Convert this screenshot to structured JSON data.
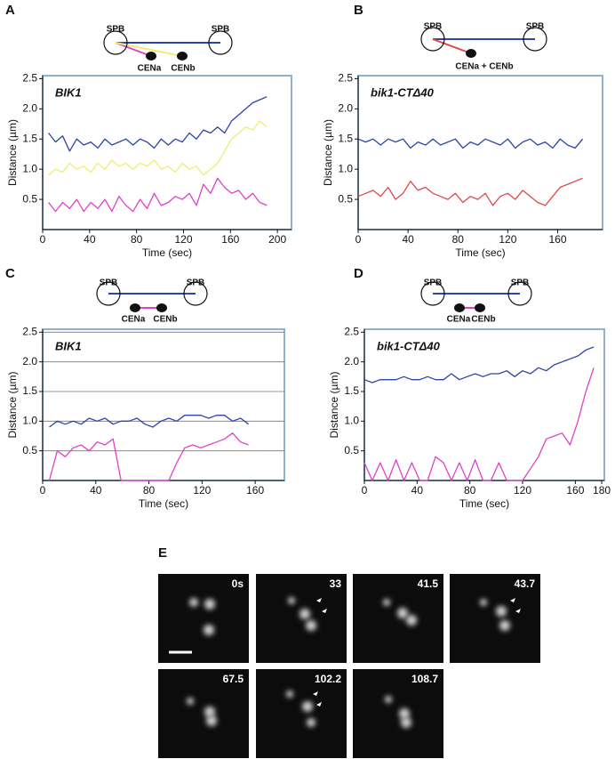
{
  "chart_data": [
    {
      "panel": "A",
      "type": "line",
      "title": "BIK1",
      "diagram_labels": [
        "SPB",
        "SPB",
        "CENa",
        "CENb"
      ],
      "xlabel": "Time (sec)",
      "ylabel": "Distance (µm)",
      "grid": false,
      "xlim": [
        0,
        212
      ],
      "ylim": [
        0,
        2.55
      ],
      "xticks": [
        0,
        40,
        80,
        120,
        160,
        200
      ],
      "yticks": [
        0.5,
        {
          "value": 1,
          "label": "1.0"
        },
        1.5,
        {
          "value": 2,
          "label": "2.0"
        },
        2.5
      ],
      "x": [
        5,
        11,
        17,
        23,
        29,
        35,
        41,
        47,
        53,
        59,
        65,
        71,
        77,
        83,
        89,
        95,
        101,
        107,
        113,
        119,
        125,
        131,
        137,
        143,
        149,
        155,
        161,
        167,
        173,
        179,
        185,
        191
      ],
      "series": [
        {
          "color": "#2b45a8",
          "values": [
            1.6,
            1.45,
            1.55,
            1.3,
            1.5,
            1.4,
            1.45,
            1.35,
            1.5,
            1.4,
            1.45,
            1.5,
            1.4,
            1.5,
            1.45,
            1.35,
            1.5,
            1.4,
            1.5,
            1.45,
            1.6,
            1.5,
            1.65,
            1.6,
            1.7,
            1.6,
            1.8,
            1.9,
            2.0,
            2.1,
            2.15,
            2.2
          ]
        },
        {
          "color": "#eeee70",
          "values": [
            0.9,
            1.0,
            0.95,
            1.1,
            1.0,
            1.05,
            0.95,
            1.1,
            1.0,
            1.15,
            1.05,
            1.1,
            1.0,
            1.1,
            1.05,
            1.15,
            1.0,
            1.05,
            0.95,
            1.1,
            1.0,
            1.05,
            0.9,
            1.0,
            1.1,
            1.3,
            1.5,
            1.6,
            1.7,
            1.65,
            1.8,
            1.7
          ]
        },
        {
          "color": "#e040c8",
          "values": [
            0.45,
            0.3,
            0.45,
            0.35,
            0.5,
            0.3,
            0.45,
            0.35,
            0.5,
            0.3,
            0.55,
            0.4,
            0.3,
            0.5,
            0.35,
            0.6,
            0.4,
            0.45,
            0.55,
            0.5,
            0.6,
            0.4,
            0.75,
            0.6,
            0.85,
            0.7,
            0.6,
            0.65,
            0.5,
            0.6,
            0.45,
            0.4
          ]
        }
      ]
    },
    {
      "panel": "B",
      "type": "line",
      "title": "bik1-CTΔ40",
      "diagram_labels": [
        "SPB",
        "SPB",
        "CENa + CENb"
      ],
      "xlabel": "Time (sec)",
      "ylabel": "Distance (µm)",
      "grid": false,
      "xlim": [
        0,
        196
      ],
      "ylim": [
        0,
        2.55
      ],
      "xticks": [
        0,
        40,
        80,
        120,
        160
      ],
      "yticks": [
        0.5,
        {
          "value": 1,
          "label": "1.0"
        },
        1.5,
        {
          "value": 2,
          "label": "2.0"
        },
        2.5
      ],
      "x": [
        0,
        6,
        12,
        18,
        24,
        30,
        36,
        42,
        48,
        54,
        60,
        66,
        72,
        78,
        84,
        90,
        96,
        102,
        108,
        114,
        120,
        126,
        132,
        138,
        144,
        150,
        156,
        162,
        168,
        174,
        180
      ],
      "series": [
        {
          "color": "#2b45a8",
          "values": [
            1.5,
            1.45,
            1.5,
            1.4,
            1.5,
            1.45,
            1.5,
            1.35,
            1.45,
            1.4,
            1.5,
            1.4,
            1.45,
            1.5,
            1.35,
            1.45,
            1.4,
            1.5,
            1.45,
            1.4,
            1.5,
            1.35,
            1.45,
            1.5,
            1.4,
            1.45,
            1.35,
            1.5,
            1.4,
            1.35,
            1.5
          ]
        },
        {
          "color": "#e04848",
          "values": [
            0.55,
            0.6,
            0.65,
            0.55,
            0.7,
            0.5,
            0.6,
            0.8,
            0.65,
            0.7,
            0.6,
            0.55,
            0.5,
            0.6,
            0.45,
            0.55,
            0.5,
            0.6,
            0.4,
            0.55,
            0.6,
            0.5,
            0.65,
            0.55,
            0.45,
            0.4,
            0.55,
            0.7,
            0.75,
            0.8,
            0.85
          ]
        }
      ]
    },
    {
      "panel": "C",
      "type": "line",
      "title": "BIK1",
      "diagram_labels": [
        "SPB",
        "SPB",
        "CENa",
        "CENb"
      ],
      "xlabel": "Time (sec)",
      "ylabel": "Distance (µm)",
      "grid": true,
      "xlim": [
        0,
        182
      ],
      "ylim": [
        0,
        2.55
      ],
      "xticks": [
        0,
        40,
        80,
        120,
        160
      ],
      "yticks": [
        0.5,
        {
          "value": 1,
          "label": "1.0"
        },
        1.5,
        {
          "value": 2,
          "label": "2.0"
        },
        2.5
      ],
      "x": [
        5,
        11,
        17,
        23,
        29,
        35,
        41,
        47,
        53,
        59,
        65,
        71,
        77,
        83,
        89,
        95,
        101,
        107,
        113,
        119,
        125,
        131,
        137,
        143,
        149,
        155
      ],
      "series": [
        {
          "color": "#2b45a8",
          "values": [
            0.9,
            1.0,
            0.95,
            1.0,
            0.95,
            1.05,
            1.0,
            1.05,
            0.95,
            1.0,
            1.0,
            1.05,
            0.95,
            0.9,
            1.0,
            1.05,
            1.0,
            1.1,
            1.1,
            1.1,
            1.05,
            1.1,
            1.1,
            1.0,
            1.05,
            0.95
          ]
        },
        {
          "color": "#e040c8",
          "values": [
            0,
            0.5,
            0.4,
            0.55,
            0.6,
            0.5,
            0.65,
            0.6,
            0.7,
            0,
            0,
            0,
            0,
            0,
            0,
            0,
            0.3,
            0.55,
            0.6,
            0.55,
            0.6,
            0.65,
            0.7,
            0.8,
            0.65,
            0.6
          ]
        }
      ]
    },
    {
      "panel": "D",
      "type": "line",
      "title": "bik1-CTΔ40",
      "diagram_labels": [
        "SPB",
        "SPB",
        "CENa",
        "CENb"
      ],
      "xlabel": "Time (sec)",
      "ylabel": "Distance (µm)",
      "grid": false,
      "xlim": [
        0,
        182
      ],
      "ylim": [
        0,
        2.55
      ],
      "xticks": [
        0,
        40,
        80,
        120,
        160,
        180
      ],
      "yticks": [
        0.5,
        {
          "value": 1,
          "label": "1.0"
        },
        1.5,
        {
          "value": 2,
          "label": "2.0"
        },
        2.5
      ],
      "x": [
        0,
        6,
        12,
        18,
        24,
        30,
        36,
        42,
        48,
        54,
        60,
        66,
        72,
        78,
        84,
        90,
        96,
        102,
        108,
        114,
        120,
        126,
        132,
        138,
        144,
        150,
        156,
        162,
        168,
        174
      ],
      "series": [
        {
          "color": "#2b45a8",
          "values": [
            1.7,
            1.65,
            1.7,
            1.7,
            1.7,
            1.75,
            1.7,
            1.7,
            1.75,
            1.7,
            1.7,
            1.8,
            1.7,
            1.75,
            1.8,
            1.75,
            1.8,
            1.8,
            1.85,
            1.75,
            1.85,
            1.8,
            1.9,
            1.85,
            1.95,
            2.0,
            2.05,
            2.1,
            2.2,
            2.25
          ]
        },
        {
          "color": "#e040c8",
          "values": [
            0.3,
            0,
            0.3,
            0,
            0.35,
            0,
            0.3,
            0,
            0,
            0.4,
            0.3,
            0,
            0.3,
            0,
            0.35,
            0,
            0,
            0.3,
            0,
            0,
            0,
            0.2,
            0.4,
            0.7,
            0.75,
            0.8,
            0.6,
            1.0,
            1.5,
            1.9
          ]
        }
      ]
    }
  ],
  "panel_e": {
    "panel": "E",
    "frames": [
      "0s",
      "33",
      "41.5",
      "43.7",
      "67.5",
      "102.2",
      "108.7"
    ]
  }
}
